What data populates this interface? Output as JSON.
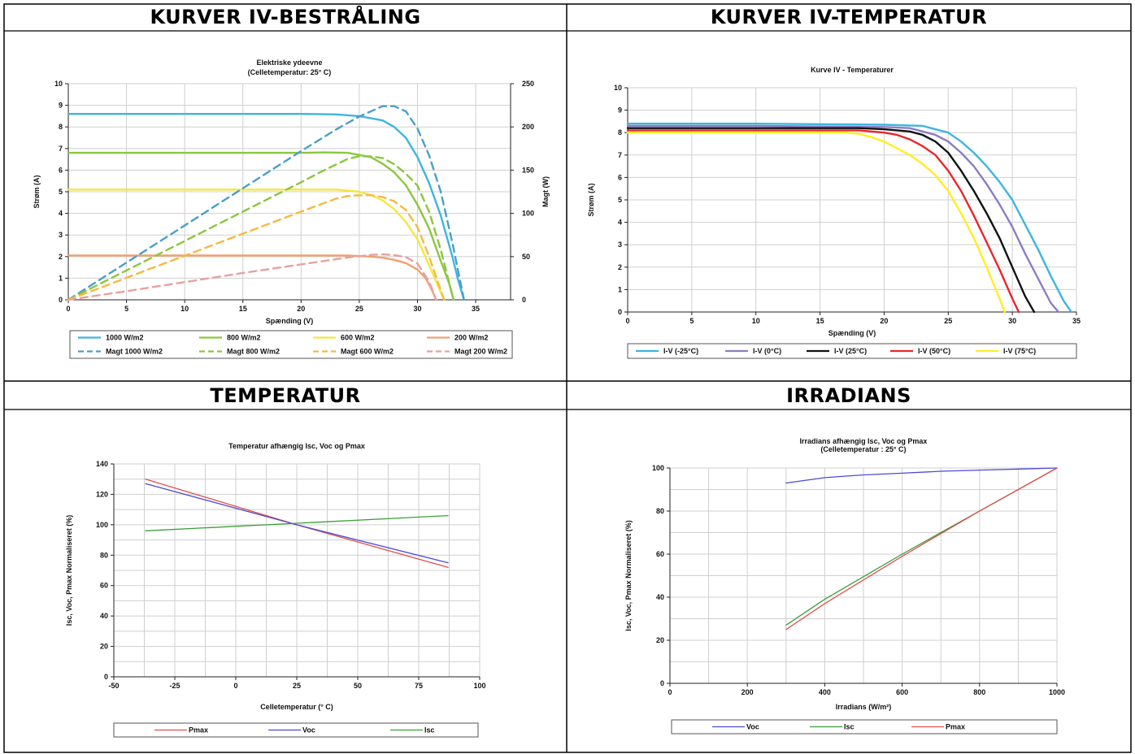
{
  "headers": {
    "top_left": "KURVER IV-BESTRÅLING",
    "top_right": "KURVER IV-TEMPERATUR",
    "bottom_left": "TEMPERATUR",
    "bottom_right": "IRRADIANS"
  },
  "chart_data": [
    {
      "id": "irradiance",
      "type": "line",
      "title": "Elektriske ydeevne",
      "subtitle": "(Celletemperatur: 25° C)",
      "xlabel": "Spænding (V)",
      "ylabel": "Strøm (A)",
      "y2label": "Magt (W)",
      "xlim": [
        0,
        38
      ],
      "xticks": [
        0,
        5,
        10,
        15,
        20,
        25,
        30,
        35
      ],
      "ylim": [
        0,
        10
      ],
      "yticks": [
        0,
        1,
        2,
        3,
        4,
        5,
        6,
        7,
        8,
        9,
        10
      ],
      "y2lim": [
        0,
        250
      ],
      "y2ticks": [
        0,
        50,
        100,
        150,
        200,
        250
      ],
      "grid": true,
      "legend_position": "bottom",
      "series": [
        {
          "name": "1000 W/m2",
          "color": "#3db5e0",
          "dash": false,
          "axis": "left",
          "x": [
            0,
            5,
            10,
            15,
            20,
            23,
            25,
            27,
            28,
            29,
            30,
            31,
            32,
            33,
            33.5,
            34
          ],
          "y": [
            8.6,
            8.6,
            8.6,
            8.6,
            8.6,
            8.58,
            8.5,
            8.3,
            8.0,
            7.5,
            6.6,
            5.4,
            3.9,
            2.0,
            0.9,
            0
          ]
        },
        {
          "name": "800 W/m2",
          "color": "#8cc63f",
          "dash": false,
          "axis": "left",
          "x": [
            0,
            5,
            10,
            15,
            20,
            22,
            24,
            26,
            27,
            28,
            29,
            30,
            31,
            32,
            32.7,
            33.1
          ],
          "y": [
            6.8,
            6.8,
            6.8,
            6.8,
            6.8,
            6.82,
            6.8,
            6.6,
            6.3,
            5.9,
            5.3,
            4.4,
            3.3,
            1.8,
            0.8,
            0
          ]
        },
        {
          "name": "600 W/m2",
          "color": "#f5e642",
          "dash": false,
          "axis": "left",
          "x": [
            0,
            5,
            10,
            15,
            20,
            23,
            25,
            26,
            27,
            28,
            29,
            30,
            31,
            31.8,
            32.3
          ],
          "y": [
            5.1,
            5.1,
            5.1,
            5.1,
            5.1,
            5.1,
            5.0,
            4.85,
            4.6,
            4.2,
            3.6,
            2.8,
            1.6,
            0.6,
            0
          ]
        },
        {
          "name": "200 W/m2",
          "color": "#f0a070",
          "dash": false,
          "axis": "left",
          "x": [
            0,
            5,
            10,
            15,
            20,
            24,
            26,
            27,
            28,
            29,
            30,
            30.7,
            31.2,
            31.6
          ],
          "y": [
            2.05,
            2.05,
            2.05,
            2.05,
            2.05,
            2.05,
            2.0,
            1.95,
            1.85,
            1.7,
            1.4,
            1.0,
            0.5,
            0
          ]
        },
        {
          "name": "Magt 1000 W/m2",
          "color": "#4a9fc8",
          "dash": true,
          "axis": "right",
          "x": [
            0,
            5,
            10,
            15,
            20,
            23,
            25,
            27,
            28,
            29,
            30,
            31,
            32,
            33,
            34
          ],
          "y": [
            0,
            43,
            86,
            129,
            172,
            197,
            212,
            224,
            224,
            218,
            198,
            167,
            125,
            66,
            0
          ]
        },
        {
          "name": "Magt 800 W/m2",
          "color": "#8cc63f",
          "dash": true,
          "axis": "right",
          "x": [
            0,
            5,
            10,
            15,
            20,
            22,
            24,
            25,
            26,
            27,
            28,
            29,
            30,
            31,
            32,
            33.1
          ],
          "y": [
            0,
            34,
            68,
            102,
            136,
            150,
            163,
            166,
            166,
            164,
            157,
            146,
            132,
            102,
            58,
            0
          ]
        },
        {
          "name": "Magt 600 W/m2",
          "color": "#f5b942",
          "dash": true,
          "axis": "right",
          "x": [
            0,
            5,
            10,
            15,
            20,
            23,
            24,
            25,
            26,
            27,
            28,
            29,
            30,
            31,
            31.8,
            32.3
          ],
          "y": [
            0,
            25.5,
            51,
            76.5,
            102,
            117,
            120,
            121,
            121,
            119,
            114,
            104,
            84,
            50,
            19,
            0
          ]
        },
        {
          "name": "Magt 200 W/m2",
          "color": "#e8a0a0",
          "dash": true,
          "axis": "right",
          "x": [
            0,
            5,
            10,
            15,
            20,
            24,
            26,
            27,
            28,
            29,
            30,
            31,
            31.6
          ],
          "y": [
            0,
            10,
            20.5,
            31,
            41,
            49,
            52,
            52.5,
            51.8,
            49.3,
            42,
            21,
            0
          ]
        }
      ]
    },
    {
      "id": "temperature_iv",
      "type": "line",
      "title": "Kurve IV - Temperaturer",
      "xlabel": "Spænding (V)",
      "ylabel": "Strøm (A)",
      "xlim": [
        0,
        35
      ],
      "xticks": [
        0,
        5,
        10,
        15,
        20,
        25,
        30,
        35
      ],
      "ylim": [
        0,
        10
      ],
      "yticks": [
        0,
        1,
        2,
        3,
        4,
        5,
        6,
        7,
        8,
        9,
        10
      ],
      "grid": true,
      "legend_position": "bottom",
      "series": [
        {
          "name": "I-V (-25°C)",
          "color": "#3db5e0",
          "x": [
            0,
            10,
            20,
            23,
            25,
            26,
            27,
            28,
            29,
            30,
            31,
            32,
            33,
            34,
            34.6
          ],
          "y": [
            8.4,
            8.4,
            8.35,
            8.3,
            8.0,
            7.6,
            7.1,
            6.5,
            5.8,
            5.0,
            3.9,
            2.8,
            1.6,
            0.5,
            0
          ]
        },
        {
          "name": "I-V (0°C)",
          "color": "#8e7cc3",
          "x": [
            0,
            10,
            20,
            22,
            24,
            25,
            26,
            27,
            28,
            29,
            30,
            31,
            32,
            33,
            33.6
          ],
          "y": [
            8.3,
            8.3,
            8.25,
            8.2,
            7.9,
            7.6,
            7.1,
            6.5,
            5.7,
            4.8,
            3.8,
            2.6,
            1.5,
            0.4,
            0
          ]
        },
        {
          "name": "I-V (25°C)",
          "color": "#111111",
          "x": [
            0,
            10,
            18,
            20,
            22,
            23,
            24,
            25,
            26,
            27,
            28,
            29,
            30,
            31,
            31.7
          ],
          "y": [
            8.2,
            8.2,
            8.2,
            8.15,
            8.05,
            7.9,
            7.6,
            7.1,
            6.3,
            5.4,
            4.4,
            3.3,
            2.0,
            0.7,
            0
          ]
        },
        {
          "name": "I-V (50°C)",
          "color": "#e8262b",
          "x": [
            0,
            10,
            18,
            20,
            21,
            22,
            23,
            24,
            25,
            26,
            27,
            28,
            29,
            30,
            30.5
          ],
          "y": [
            8.1,
            8.1,
            8.1,
            8.0,
            7.9,
            7.7,
            7.4,
            7.0,
            6.3,
            5.4,
            4.3,
            3.1,
            1.9,
            0.6,
            0
          ]
        },
        {
          "name": "I-V (75°C)",
          "color": "#ffee22",
          "x": [
            0,
            10,
            17,
            18,
            19,
            20,
            21,
            22,
            23,
            24,
            25,
            26,
            27,
            28,
            29,
            29.4
          ],
          "y": [
            8.0,
            8.0,
            8.0,
            7.95,
            7.8,
            7.6,
            7.3,
            7.0,
            6.6,
            6.1,
            5.4,
            4.4,
            3.3,
            2.0,
            0.6,
            0
          ]
        }
      ]
    },
    {
      "id": "temperature_norm",
      "type": "line",
      "title": "Temperatur afhængig Isc, Voc og Pmax",
      "xlabel": "Celletemperatur (° C)",
      "ylabel": "Isc, Voc, Pmax Normaliseret (%)",
      "xlim": [
        -50,
        100
      ],
      "xticks": [
        -50,
        -25,
        0,
        25,
        50,
        75,
        100
      ],
      "ylim": [
        0,
        140
      ],
      "yticks": [
        0,
        20,
        40,
        60,
        80,
        100,
        120,
        140
      ],
      "grid": true,
      "legend_position": "bottom",
      "series": [
        {
          "name": "Pmax",
          "color": "#e05050",
          "x": [
            -37,
            25,
            87
          ],
          "y": [
            130,
            100,
            72
          ]
        },
        {
          "name": "Voc",
          "color": "#4b4bd6",
          "x": [
            -37,
            25,
            87
          ],
          "y": [
            127,
            100,
            75
          ]
        },
        {
          "name": "Isc",
          "color": "#3a9e3a",
          "x": [
            -37,
            25,
            87
          ],
          "y": [
            96,
            101,
            106
          ]
        }
      ]
    },
    {
      "id": "irradiance_norm",
      "type": "line",
      "title": "Irradians afhængig Isc, Voc og Pmax",
      "subtitle": "(Celletemperatur : 25° C)",
      "xlabel": "Irradians (W/m²)",
      "ylabel": "Isc, Voc, Pmax Normaliseret (%)",
      "xlim": [
        0,
        1000
      ],
      "xticks": [
        0,
        200,
        400,
        600,
        800,
        1000
      ],
      "ylim": [
        0,
        100
      ],
      "yticks": [
        0,
        20,
        40,
        60,
        80,
        100
      ],
      "grid": true,
      "legend_position": "bottom",
      "series": [
        {
          "name": "Voc",
          "color": "#4b4bd6",
          "x": [
            300,
            400,
            500,
            600,
            700,
            800,
            1000
          ],
          "y": [
            93,
            95.5,
            96.8,
            97.6,
            98.5,
            99,
            100
          ]
        },
        {
          "name": "Isc",
          "color": "#3a9e3a",
          "x": [
            300,
            400,
            500,
            600,
            700,
            800,
            1000
          ],
          "y": [
            27,
            39,
            49.5,
            60,
            70,
            80,
            100
          ]
        },
        {
          "name": "Pmax",
          "color": "#e05050",
          "x": [
            300,
            400,
            500,
            600,
            700,
            800,
            1000
          ],
          "y": [
            25,
            37,
            48,
            59,
            69.5,
            80,
            100
          ]
        }
      ]
    }
  ]
}
